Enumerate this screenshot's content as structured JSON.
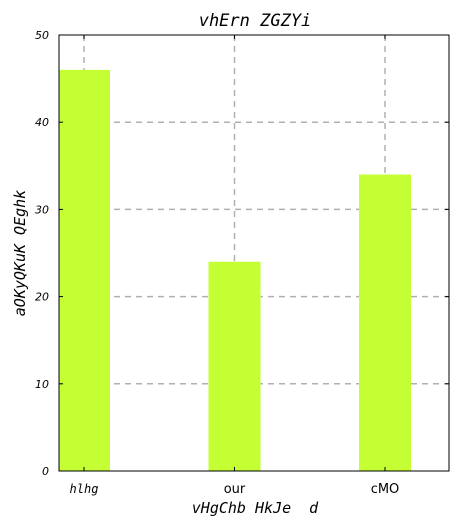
{
  "chart_data": {
    "type": "bar",
    "title": "vhErn ZGZYi",
    "xlabel": "vHgChb HkJe  d",
    "ylabel": "aOKyQKuK QEghk",
    "categories": [
      "hlhg",
      "our",
      "cMO"
    ],
    "values": [
      46,
      24,
      34
    ],
    "ylim": [
      0,
      50
    ],
    "yticks": [
      0,
      10,
      20,
      30,
      40,
      50
    ],
    "grid": true,
    "bar_color": "#c3ff33",
    "grid_color": "#b0b0b0"
  }
}
